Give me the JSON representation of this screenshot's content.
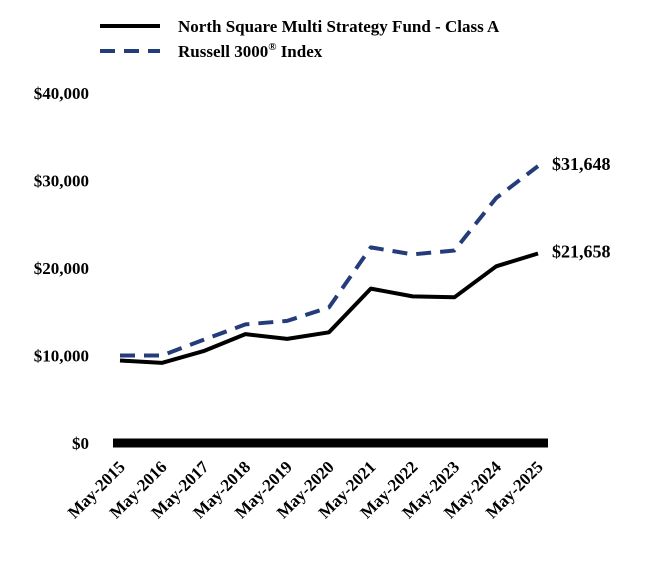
{
  "chart_data": {
    "type": "line",
    "categories": [
      "May-2015",
      "May-2016",
      "May-2017",
      "May-2018",
      "May-2019",
      "May-2020",
      "May-2021",
      "May-2022",
      "May-2023",
      "May-2024",
      "May-2025"
    ],
    "series": [
      {
        "name": "North Square Multi Strategy Fund - Class A",
        "color": "#000000",
        "dash": "solid",
        "values": [
          9425,
          9150,
          10500,
          12450,
          11900,
          12650,
          17650,
          16750,
          16650,
          20200,
          21658
        ],
        "end_label": "$21,658"
      },
      {
        "name": "Russell 3000",
        "name_sup": "®",
        "name_suffix": " Index",
        "color": "#253C7A",
        "dash": "dashed",
        "values": [
          10000,
          10000,
          11800,
          13550,
          13950,
          15500,
          22350,
          21550,
          22000,
          28000,
          31648
        ],
        "end_label": "$31,648"
      }
    ],
    "ylim": [
      0,
      40000
    ],
    "yticks": [
      0,
      10000,
      20000,
      30000,
      40000
    ],
    "ytick_labels": [
      "$0",
      "$10,000",
      "$20,000",
      "$30,000",
      "$40,000"
    ],
    "xlabel": "",
    "ylabel": "",
    "title": "",
    "grid": false,
    "legend_position": "top-center"
  }
}
